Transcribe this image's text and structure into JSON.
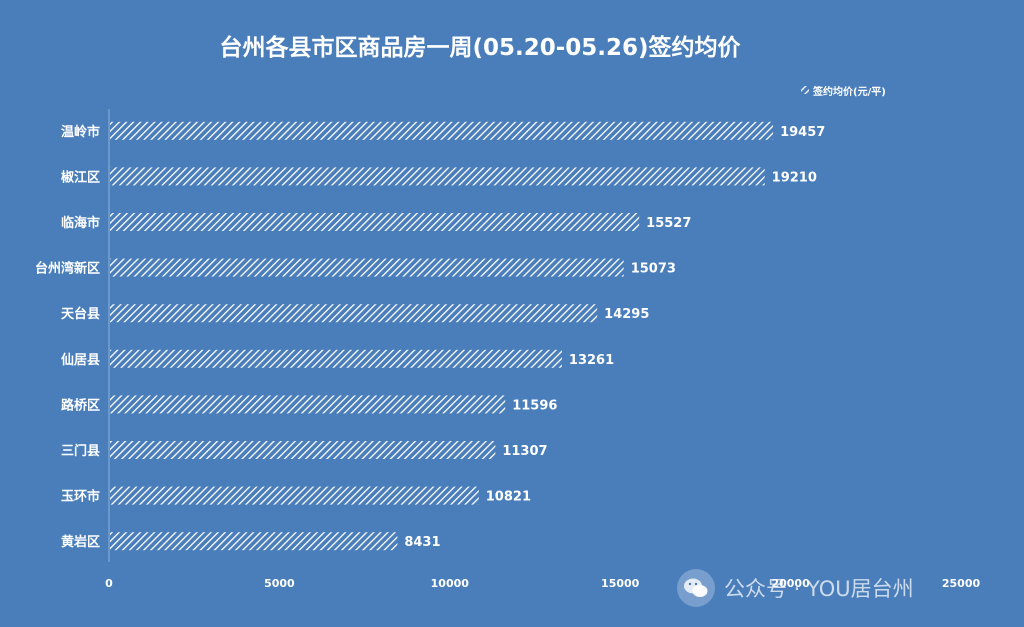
{
  "chart_data": {
    "type": "bar",
    "orientation": "horizontal",
    "title": "台州各县市区商品房一周(05.20-05.26)签约均价",
    "legend": {
      "label": "签约均价(元/平)",
      "position": "top-right"
    },
    "categories": [
      "温岭市",
      "椒江区",
      "临海市",
      "台州湾新区",
      "天台县",
      "仙居县",
      "路桥区",
      "三门县",
      "玉环市",
      "黄岩区"
    ],
    "series": [
      {
        "name": "签约均价(元/平)",
        "values": [
          19457,
          19210,
          15527,
          15073,
          14295,
          13261,
          11596,
          11307,
          10821,
          8431
        ]
      }
    ],
    "xlim": [
      0,
      25000
    ],
    "xticks": [
      0,
      5000,
      10000,
      15000,
      20000,
      25000
    ],
    "xtick_labels": [
      "0",
      "5000",
      "10000",
      "15000",
      "20000",
      "25000"
    ],
    "grid": false
  },
  "colors": {
    "background": "#4a7ebb",
    "bar_fill": "#ffffff",
    "text": "#ffffff"
  },
  "watermark": {
    "text": "公众号 · YOU居台州",
    "icon": "wechat-icon"
  }
}
